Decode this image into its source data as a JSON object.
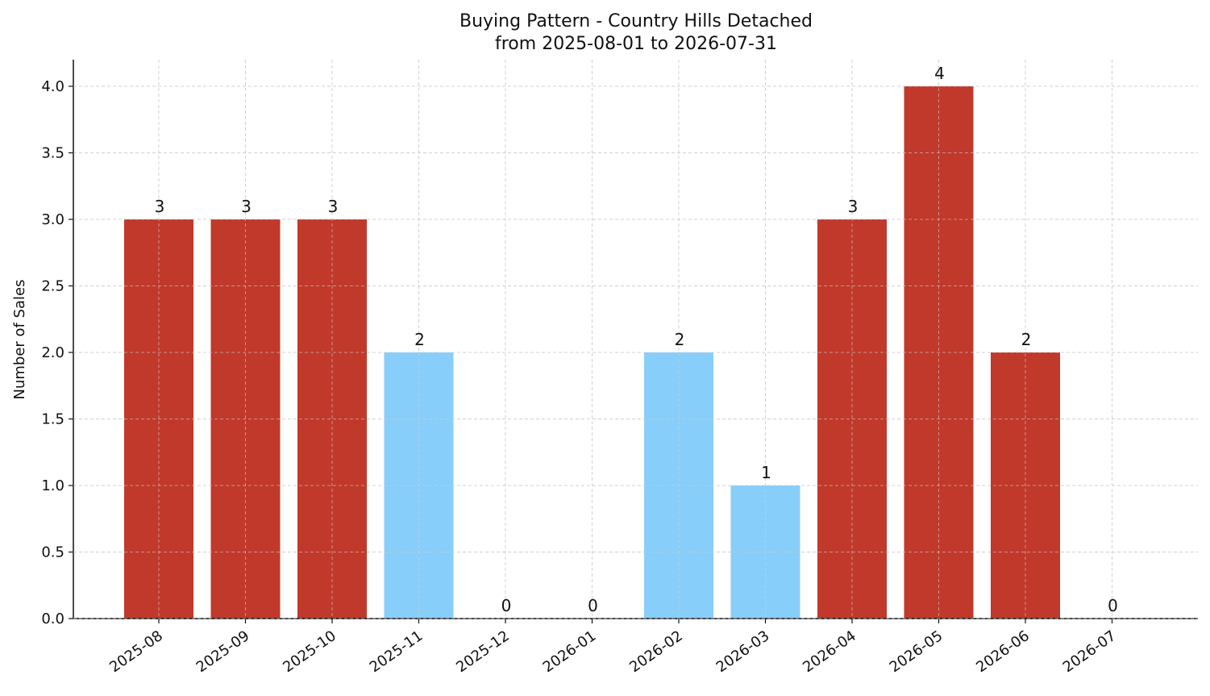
{
  "chart_data": {
    "type": "bar",
    "title": "Buying Pattern - Country Hills Detached",
    "subtitle": "from 2025-08-01 to 2026-07-31",
    "xlabel": "",
    "ylabel": "Number of Sales",
    "categories": [
      "2025-08",
      "2025-09",
      "2025-10",
      "2025-11",
      "2025-12",
      "2026-01",
      "2026-02",
      "2026-03",
      "2026-04",
      "2026-05",
      "2026-06",
      "2026-07"
    ],
    "values": [
      3,
      3,
      3,
      2,
      0,
      0,
      2,
      1,
      3,
      4,
      2,
      0
    ],
    "data_labels": [
      "3",
      "3",
      "3",
      "2",
      "0",
      "0",
      "2",
      "1",
      "3",
      "4",
      "2",
      "0"
    ],
    "bar_colors": [
      "#c0392b",
      "#c0392b",
      "#c0392b",
      "#87cefa",
      "#87cefa",
      "#87cefa",
      "#87cefa",
      "#87cefa",
      "#c0392b",
      "#c0392b",
      "#c0392b",
      "#87cefa"
    ],
    "yticks": [
      "0.0",
      "0.5",
      "1.0",
      "1.5",
      "2.0",
      "2.5",
      "3.0",
      "3.5",
      "4.0"
    ],
    "ylim": [
      0,
      4.2
    ],
    "grid": true
  }
}
